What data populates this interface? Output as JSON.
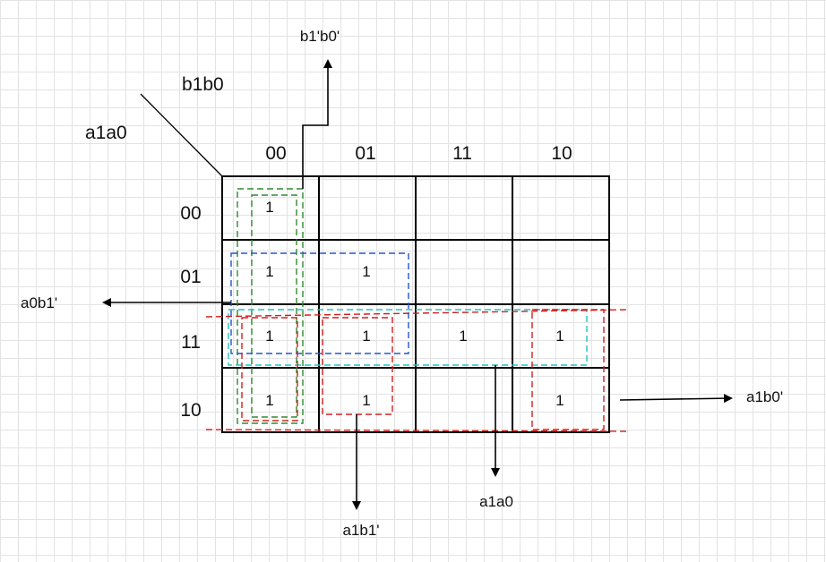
{
  "kmap": {
    "corner_row_var": "b1b0",
    "corner_col_var": "a1a0",
    "col_headers": [
      "00",
      "01",
      "11",
      "10"
    ],
    "row_headers": [
      "00",
      "01",
      "11",
      "10"
    ],
    "cells": [
      [
        "1",
        "",
        "",
        ""
      ],
      [
        "1",
        "1",
        "",
        ""
      ],
      [
        "1",
        "1",
        "1",
        "1"
      ],
      [
        "1",
        "1",
        "",
        "1"
      ]
    ]
  },
  "groups": [
    {
      "label": "b1'b0'",
      "color": "#2e8b2e"
    },
    {
      "label": "a0b1'",
      "color": "#2255cc"
    },
    {
      "label": "a1a0",
      "color": "#22c4c4"
    },
    {
      "label": "a1b0'",
      "color": "#d42020"
    },
    {
      "label": "a1b1'",
      "color": "#d42020"
    }
  ],
  "colors": {
    "grid_line": "#000000",
    "background": "#ffffff"
  }
}
